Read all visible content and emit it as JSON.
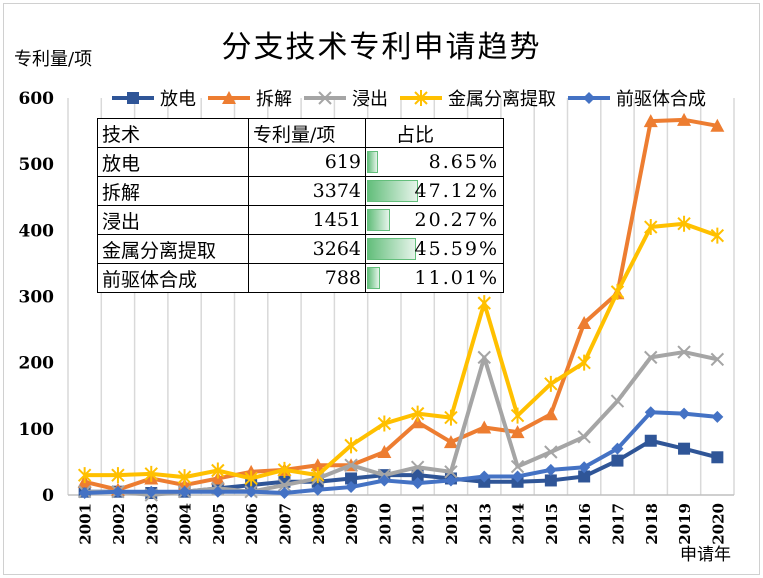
{
  "chart_data": {
    "type": "line",
    "title": "分支技术专利申请趋势",
    "ylabel": "专利量/项",
    "xlabel": "申请年",
    "ylim": [
      0,
      600
    ],
    "yticks": [
      0,
      100,
      200,
      300,
      400,
      500,
      600
    ],
    "grid": "vertical",
    "legend_position": "top",
    "categories": [
      "2001",
      "2002",
      "2003",
      "2004",
      "2005",
      "2006",
      "2007",
      "2008",
      "2009",
      "2010",
      "2011",
      "2012",
      "2013",
      "2014",
      "2015",
      "2016",
      "2017",
      "2018",
      "2019",
      "2020"
    ],
    "series": [
      {
        "name": "放电",
        "color": "#2f5597",
        "marker": "square",
        "values": [
          5,
          5,
          3,
          5,
          10,
          15,
          20,
          20,
          25,
          30,
          30,
          25,
          20,
          20,
          22,
          28,
          52,
          82,
          70,
          57
        ]
      },
      {
        "name": "拆解",
        "color": "#ed7d31",
        "marker": "triangle",
        "values": [
          20,
          8,
          25,
          15,
          25,
          35,
          38,
          45,
          45,
          65,
          110,
          80,
          102,
          95,
          122,
          260,
          305,
          565,
          567,
          558
        ]
      },
      {
        "name": "浸出",
        "color": "#a5a5a5",
        "marker": "x",
        "values": [
          5,
          5,
          0,
          5,
          10,
          5,
          15,
          25,
          45,
          30,
          42,
          35,
          208,
          43,
          65,
          88,
          142,
          208,
          216,
          205
        ]
      },
      {
        "name": "金属分离提取",
        "color": "#ffc000",
        "marker": "star",
        "values": [
          30,
          30,
          32,
          27,
          37,
          25,
          38,
          30,
          75,
          108,
          123,
          117,
          290,
          120,
          168,
          200,
          307,
          405,
          410,
          392
        ]
      },
      {
        "name": "前驱体合成",
        "color": "#4472c4",
        "marker": "diamond",
        "values": [
          3,
          5,
          5,
          5,
          5,
          5,
          3,
          8,
          12,
          22,
          18,
          22,
          28,
          28,
          38,
          42,
          70,
          125,
          123,
          118
        ]
      }
    ]
  },
  "table": {
    "headers": [
      "技术",
      "专利量/项",
      "占比"
    ],
    "rows": [
      {
        "tech": "放电",
        "count": "619",
        "share": "8.65%",
        "frac": 0.0865
      },
      {
        "tech": "拆解",
        "count": "3374",
        "share": "47.12%",
        "frac": 0.4712
      },
      {
        "tech": "浸出",
        "count": "1451",
        "share": "20.27%",
        "frac": 0.2027
      },
      {
        "tech": "金属分离提取",
        "count": "3264",
        "share": "45.59%",
        "frac": 0.4559
      },
      {
        "tech": "前驱体合成",
        "count": "788",
        "share": "11.01%",
        "frac": 0.1101
      }
    ]
  }
}
